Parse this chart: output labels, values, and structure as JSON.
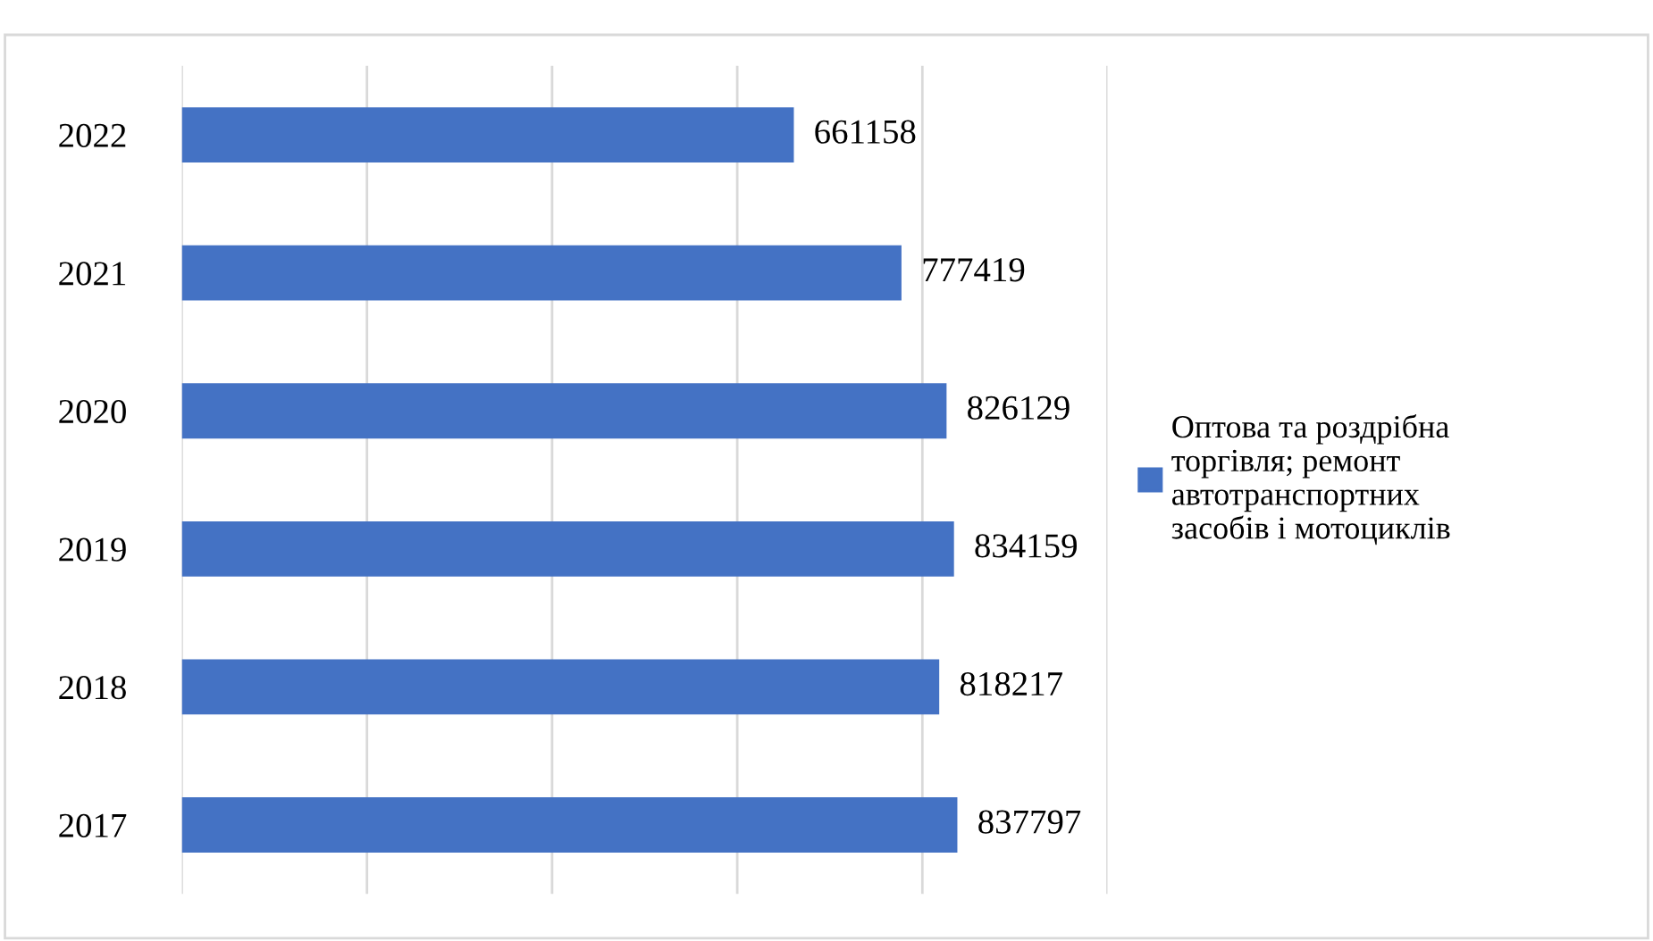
{
  "chart_data": {
    "type": "bar",
    "orientation": "horizontal",
    "categories": [
      "2022",
      "2021",
      "2020",
      "2019",
      "2018",
      "2017"
    ],
    "series": [
      {
        "name": "Оптова та роздрібна\nторгівля; ремонт\nавтотранспортних\nзасобів і мотоциклів",
        "color": "#4472c4",
        "values": [
          661158,
          777419,
          826129,
          834159,
          818217,
          837797
        ]
      }
    ],
    "xlim": [
      0,
      1000000
    ],
    "xticks": [
      {
        "value": 0,
        "label": null
      },
      {
        "value": 200000,
        "label": null
      },
      {
        "value": 400000,
        "label": null
      },
      {
        "value": 600000,
        "label": null
      },
      {
        "value": 800000,
        "label": null
      },
      {
        "value": 1000000,
        "label": null
      }
    ],
    "grid": "x",
    "legend": "right",
    "data_labels": true,
    "tick_labels": "y"
  }
}
